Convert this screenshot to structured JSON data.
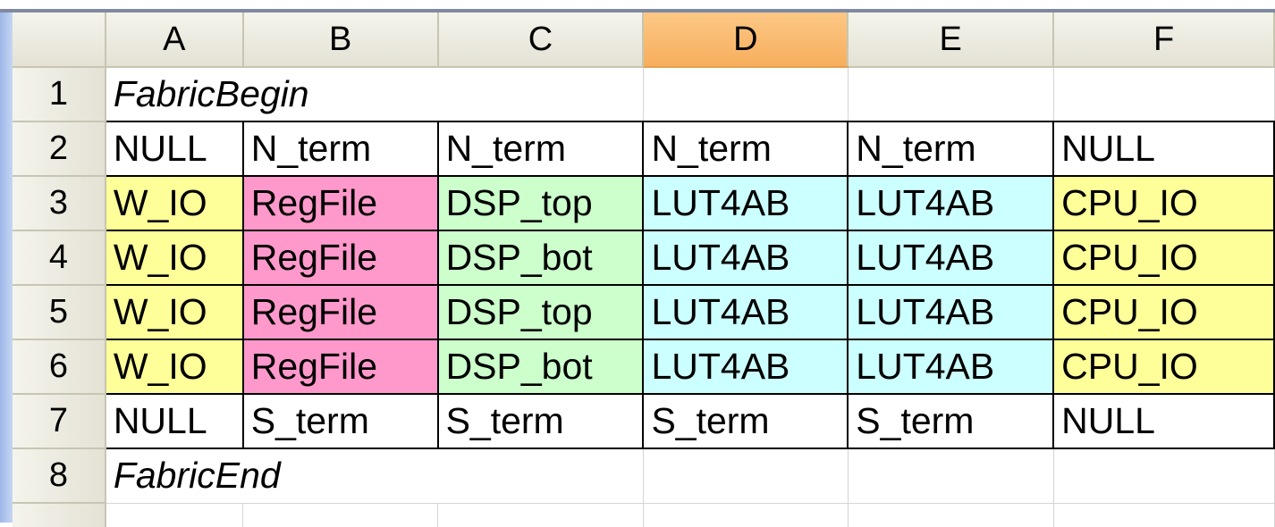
{
  "sheet": {
    "selected_column": "D",
    "columns": [
      "A",
      "B",
      "C",
      "D",
      "E",
      "F"
    ],
    "rows": [
      {
        "number": "1",
        "cells": [
          {
            "value": "FabricBegin",
            "italic": true,
            "span": 3
          },
          {
            "value": ""
          },
          {
            "value": ""
          },
          {
            "value": ""
          }
        ]
      },
      {
        "number": "2",
        "cells": [
          {
            "value": "NULL",
            "boxed": true
          },
          {
            "value": "N_term",
            "boxed": true
          },
          {
            "value": "N_term",
            "boxed": true
          },
          {
            "value": "N_term",
            "boxed": true
          },
          {
            "value": "N_term",
            "boxed": true
          },
          {
            "value": "NULL",
            "boxed": true
          }
        ]
      },
      {
        "number": "3",
        "cells": [
          {
            "value": "W_IO",
            "fill": "#ffff99",
            "boxed": true
          },
          {
            "value": "RegFile",
            "fill": "#ff99cc",
            "boxed": true
          },
          {
            "value": "DSP_top",
            "fill": "#ccffcc",
            "boxed": true
          },
          {
            "value": "LUT4AB",
            "fill": "#ccffff",
            "boxed": true
          },
          {
            "value": "LUT4AB",
            "fill": "#ccffff",
            "boxed": true
          },
          {
            "value": "CPU_IO",
            "fill": "#ffff99",
            "boxed": true
          }
        ]
      },
      {
        "number": "4",
        "cells": [
          {
            "value": "W_IO",
            "fill": "#ffff99",
            "boxed": true
          },
          {
            "value": "RegFile",
            "fill": "#ff99cc",
            "boxed": true
          },
          {
            "value": "DSP_bot",
            "fill": "#ccffcc",
            "boxed": true
          },
          {
            "value": "LUT4AB",
            "fill": "#ccffff",
            "boxed": true
          },
          {
            "value": "LUT4AB",
            "fill": "#ccffff",
            "boxed": true
          },
          {
            "value": "CPU_IO",
            "fill": "#ffff99",
            "boxed": true
          }
        ]
      },
      {
        "number": "5",
        "cells": [
          {
            "value": "W_IO",
            "fill": "#ffff99",
            "boxed": true
          },
          {
            "value": "RegFile",
            "fill": "#ff99cc",
            "boxed": true
          },
          {
            "value": "DSP_top",
            "fill": "#ccffcc",
            "boxed": true
          },
          {
            "value": "LUT4AB",
            "fill": "#ccffff",
            "boxed": true
          },
          {
            "value": "LUT4AB",
            "fill": "#ccffff",
            "boxed": true
          },
          {
            "value": "CPU_IO",
            "fill": "#ffff99",
            "boxed": true
          }
        ]
      },
      {
        "number": "6",
        "cells": [
          {
            "value": "W_IO",
            "fill": "#ffff99",
            "boxed": true
          },
          {
            "value": "RegFile",
            "fill": "#ff99cc",
            "boxed": true
          },
          {
            "value": "DSP_bot",
            "fill": "#ccffcc",
            "boxed": true
          },
          {
            "value": "LUT4AB",
            "fill": "#ccffff",
            "boxed": true
          },
          {
            "value": "LUT4AB",
            "fill": "#ccffff",
            "boxed": true
          },
          {
            "value": "CPU_IO",
            "fill": "#ffff99",
            "boxed": true
          }
        ]
      },
      {
        "number": "7",
        "cells": [
          {
            "value": "NULL",
            "boxed": true
          },
          {
            "value": "S_term",
            "boxed": true
          },
          {
            "value": "S_term",
            "boxed": true
          },
          {
            "value": "S_term",
            "boxed": true
          },
          {
            "value": "S_term",
            "boxed": true
          },
          {
            "value": "NULL",
            "boxed": true
          }
        ]
      },
      {
        "number": "8",
        "cells": [
          {
            "value": "FabricEnd",
            "italic": true,
            "span": 3
          },
          {
            "value": ""
          },
          {
            "value": ""
          },
          {
            "value": ""
          }
        ]
      }
    ],
    "colors": {
      "selected_header": "#f9b96c",
      "w_io": "#ffff99",
      "regfile": "#ff99cc",
      "dsp": "#ccffcc",
      "lut4ab": "#ccffff",
      "cpu_io": "#ffff99"
    }
  }
}
